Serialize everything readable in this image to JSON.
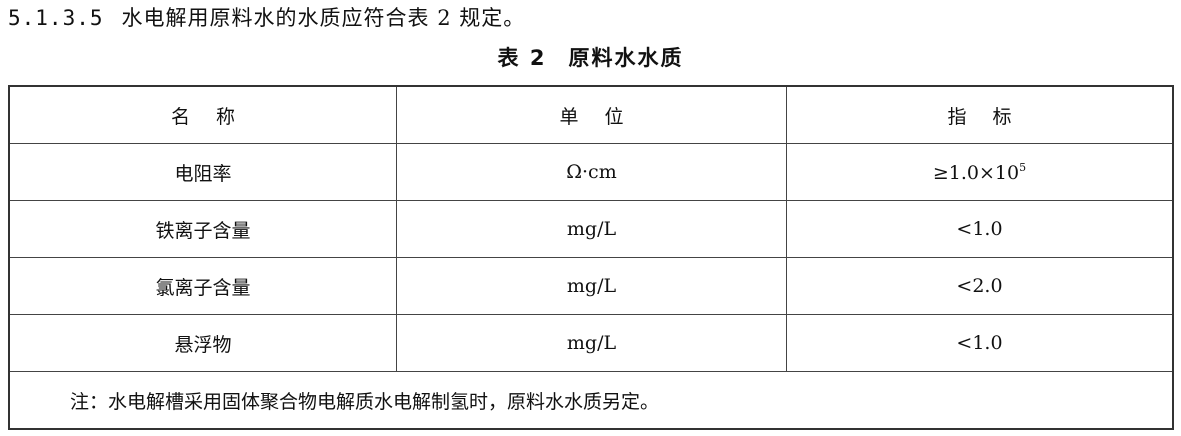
{
  "clause": {
    "number": "5.1.3.5",
    "text": "水电解用原料水的水质应符合表 2 规定。"
  },
  "table_title": {
    "number": "表 2",
    "name": "原料水水质"
  },
  "table": {
    "headers": [
      "名称",
      "单位",
      "指标"
    ],
    "rows": [
      {
        "name": "电阻率",
        "unit": "Ω·cm",
        "value": "≥1.0×10",
        "exponent": "5"
      },
      {
        "name": "铁离子含量",
        "unit": "mg/L",
        "value": "<1.0"
      },
      {
        "name": "氯离子含量",
        "unit": "mg/L",
        "value": "<2.0"
      },
      {
        "name": "悬浮物",
        "unit": "mg/L",
        "value": "<1.0"
      }
    ],
    "note": "注：水电解槽采用固体聚合物电解质水电解制氢时，原料水水质另定。"
  }
}
